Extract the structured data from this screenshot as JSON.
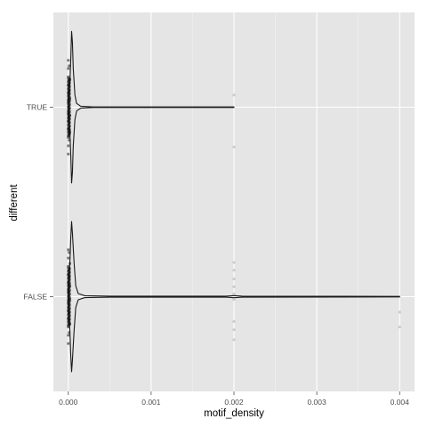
{
  "chart_data": {
    "type": "violin",
    "orientation": "horizontal",
    "title": "",
    "xlabel": "motif_density",
    "ylabel": "different",
    "xlim": [
      -0.00018,
      0.00418
    ],
    "x_ticks": [
      0.0,
      0.001,
      0.002,
      0.003,
      0.004
    ],
    "x_tick_labels": [
      "0.000",
      "0.001",
      "0.002",
      "0.003",
      "0.004"
    ],
    "categories": [
      "TRUE",
      "FALSE"
    ],
    "grid": true,
    "legend": "none",
    "colors": {
      "panel_background": "#e5e5e5",
      "grid_major": "#ffffff",
      "grid_minor": "#f2f2f2",
      "violin_outline": "#1a1a1a",
      "jitter_points": "#999999",
      "tick_text": "#4d4d4d"
    },
    "groups": [
      {
        "category": "TRUE",
        "min": 0.0,
        "max": 0.002,
        "violin_profile": [
          [
            0.0,
            0.12
          ],
          [
            1e-05,
            0.18
          ],
          [
            2e-05,
            0.34
          ],
          [
            3e-05,
            0.62
          ],
          [
            4e-05,
            0.98
          ],
          [
            5e-05,
            0.84
          ],
          [
            6e-05,
            0.5
          ],
          [
            8e-05,
            0.16
          ],
          [
            0.0001,
            0.05
          ],
          [
            0.00015,
            0.012
          ],
          [
            0.0003,
            0.004
          ],
          [
            0.002,
            0.004
          ]
        ],
        "points": [
          [
            0.0,
            0.1
          ],
          [
            0.0,
            0.25
          ],
          [
            0.0,
            0.4
          ],
          [
            0.0,
            0.55
          ],
          [
            0.0,
            0.7
          ],
          [
            0.0,
            0.85
          ],
          [
            0.0,
            -0.1
          ],
          [
            0.0,
            -0.25
          ],
          [
            0.0,
            -0.4
          ],
          [
            0.0,
            -0.55
          ],
          [
            0.0,
            -0.7
          ],
          [
            0.0,
            -0.85
          ],
          [
            1e-05,
            0.2
          ],
          [
            1e-05,
            -0.3
          ],
          [
            1e-05,
            0.6
          ],
          [
            1e-05,
            -0.75
          ],
          [
            2e-05,
            0.15
          ],
          [
            2e-05,
            -0.5
          ],
          [
            2e-05,
            0.45
          ],
          [
            2e-05,
            -0.15
          ],
          [
            0.002,
            0.72
          ],
          [
            0.002,
            -0.22
          ]
        ]
      },
      {
        "category": "FALSE",
        "min": 0.0,
        "max": 0.004,
        "violin_profile": [
          [
            0.0,
            0.15
          ],
          [
            1e-05,
            0.24
          ],
          [
            2e-05,
            0.46
          ],
          [
            3e-05,
            0.76
          ],
          [
            4e-05,
            0.97
          ],
          [
            5e-05,
            0.82
          ],
          [
            7e-05,
            0.44
          ],
          [
            9e-05,
            0.14
          ],
          [
            0.00012,
            0.04
          ],
          [
            0.0002,
            0.012
          ],
          [
            0.0005,
            0.006
          ],
          [
            0.0019,
            0.006
          ],
          [
            0.002,
            0.014
          ],
          [
            0.0021,
            0.006
          ],
          [
            0.0039,
            0.004
          ],
          [
            0.004,
            0.004
          ]
        ],
        "points": [
          [
            0.0,
            0.1
          ],
          [
            0.0,
            0.25
          ],
          [
            0.0,
            0.4
          ],
          [
            0.0,
            0.55
          ],
          [
            0.0,
            0.7
          ],
          [
            0.0,
            0.85
          ],
          [
            0.0,
            -0.1
          ],
          [
            0.0,
            -0.25
          ],
          [
            0.0,
            -0.4
          ],
          [
            0.0,
            -0.55
          ],
          [
            0.0,
            -0.7
          ],
          [
            0.0,
            -0.85
          ],
          [
            1e-05,
            0.3
          ],
          [
            1e-05,
            -0.35
          ],
          [
            1e-05,
            0.65
          ],
          [
            1e-05,
            -0.8
          ],
          [
            2e-05,
            0.05
          ],
          [
            2e-05,
            -0.6
          ],
          [
            2e-05,
            0.5
          ],
          [
            2e-05,
            -0.2
          ],
          [
            0.002,
            0.78
          ],
          [
            0.002,
            0.6
          ],
          [
            0.002,
            0.45
          ],
          [
            0.002,
            0.05
          ],
          [
            0.002,
            -0.05
          ],
          [
            0.002,
            -0.18
          ],
          [
            0.002,
            -0.32
          ],
          [
            0.002,
            -0.48
          ],
          [
            0.002,
            -0.62
          ],
          [
            0.004,
            0.55
          ],
          [
            0.004,
            0.28
          ]
        ]
      }
    ]
  }
}
